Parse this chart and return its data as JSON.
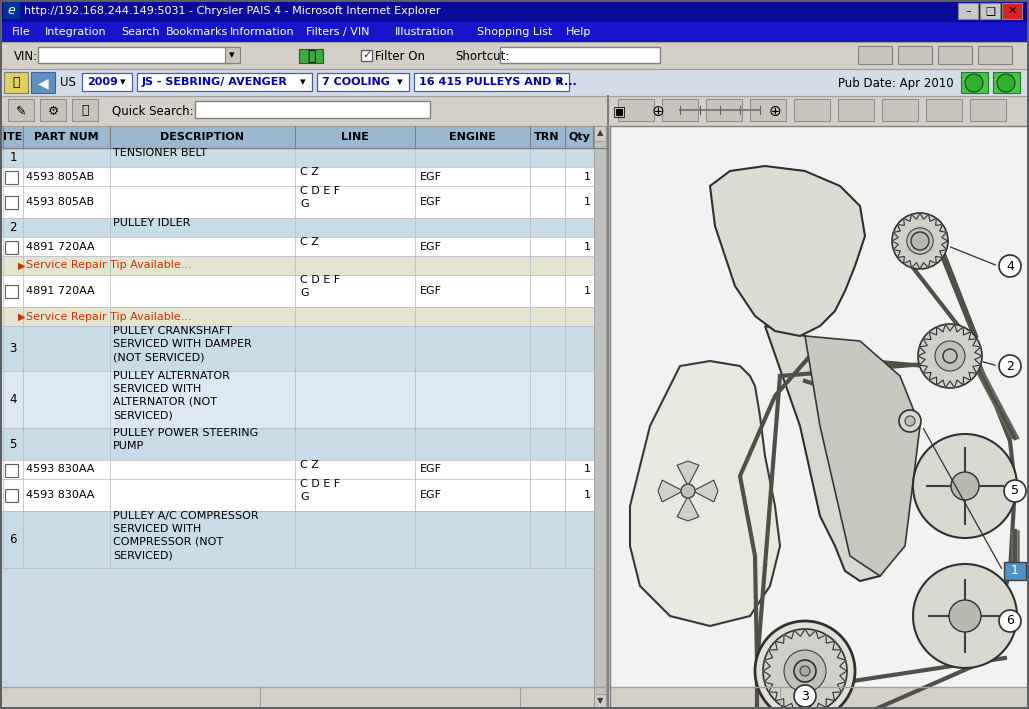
{
  "title_bar": "http://192.168.244.149:5031 - Chrysler PAIS 4 - Microsoft Internet Explorer",
  "menu_items": [
    "File",
    "Integration",
    "Search",
    "Bookmarks",
    "Information",
    "Filters / VIN",
    "Illustration",
    "Shopping List",
    "Help"
  ],
  "vin_label": "VIN:",
  "filter_on": "Filter On",
  "shortcut": "Shortcut:",
  "nav_us": "US",
  "nav_year": "2009",
  "nav_model": "JS - SEBRING/ AVENGER",
  "nav_group": "7 COOLING",
  "nav_part": "16 415 PULLEYS AND R...",
  "pub_date": "Pub Date: Apr 2010",
  "quick_search": "Quick Search:",
  "col_headers": [
    "ITE",
    "PART NUM",
    "DESCRIPTION",
    "LINE",
    "ENGINE",
    "TRN",
    "Qty"
  ],
  "col_x_positions": [
    3,
    23,
    110,
    295,
    415,
    530,
    565
  ],
  "col_widths_display": [
    20,
    87,
    185,
    120,
    115,
    35,
    28
  ],
  "table_rows": [
    {
      "type": "item_row",
      "item": "1",
      "desc": "TENSIONER BELT",
      "bg": "#c8dce8"
    },
    {
      "type": "part_row",
      "part": "4593 805AB",
      "line": "C Z",
      "engine": "EGF",
      "qty": "1",
      "bg": "#ffffff"
    },
    {
      "type": "part_row",
      "part": "4593 805AB",
      "line": "C D E F\nG",
      "engine": "EGF",
      "qty": "1",
      "bg": "#ffffff"
    },
    {
      "type": "item_row",
      "item": "2",
      "desc": "PULLEY IDLER",
      "bg": "#c8dce8"
    },
    {
      "type": "part_row",
      "part": "4891 720AA",
      "line": "C Z",
      "engine": "EGF",
      "qty": "1",
      "bg": "#ffffff"
    },
    {
      "type": "service_tip",
      "text": "Service Repair Tip Available...",
      "bg": "#e4e4d0"
    },
    {
      "type": "part_row",
      "part": "4891 720AA",
      "line": "C D E F\nG",
      "engine": "EGF",
      "qty": "1",
      "bg": "#ffffff"
    },
    {
      "type": "service_tip",
      "text": "Service Repair Tip Available...",
      "bg": "#e4e4d0"
    },
    {
      "type": "item_row",
      "item": "3",
      "desc": "PULLEY CRANKSHAFT\nSERVICED WITH DAMPER\n(NOT SERVICED)",
      "bg": "#c8dce8"
    },
    {
      "type": "item_row",
      "item": "4",
      "desc": "PULLEY ALTERNATOR\nSERVICED WITH\nALTERNATOR (NOT\nSERVICED)",
      "bg": "#dce8f4"
    },
    {
      "type": "item_row",
      "item": "5",
      "desc": "PULLEY POWER STEERING\nPUMP",
      "bg": "#c8dce8"
    },
    {
      "type": "part_row",
      "part": "4593 830AA",
      "line": "C Z",
      "engine": "EGF",
      "qty": "1",
      "bg": "#ffffff"
    },
    {
      "type": "part_row",
      "part": "4593 830AA",
      "line": "C D E F\nG",
      "engine": "EGF",
      "qty": "1",
      "bg": "#ffffff"
    },
    {
      "type": "item_row",
      "item": "6",
      "desc": "PULLEY A/C COMPRESSOR\nSERVICED WITH\nCOMPRESSOR (NOT\nSERVICED)",
      "bg": "#c8dce8"
    }
  ],
  "title_bar_bg": "#0a0a9a",
  "menu_bar_bg": "#1515cc",
  "toolbar_bg": "#d4d0c8",
  "table_col_header_bg": "#9ab8d0",
  "service_tip_color": "#cc3300",
  "nav_bar_bg": "#d4dce8",
  "nav_text_color": "#0000bb",
  "left_panel_bg": "#ccdae8",
  "right_panel_bg": "#f0f0f0",
  "window_bg": "#d4d0c8",
  "fig_width": 10.29,
  "fig_height": 7.09
}
